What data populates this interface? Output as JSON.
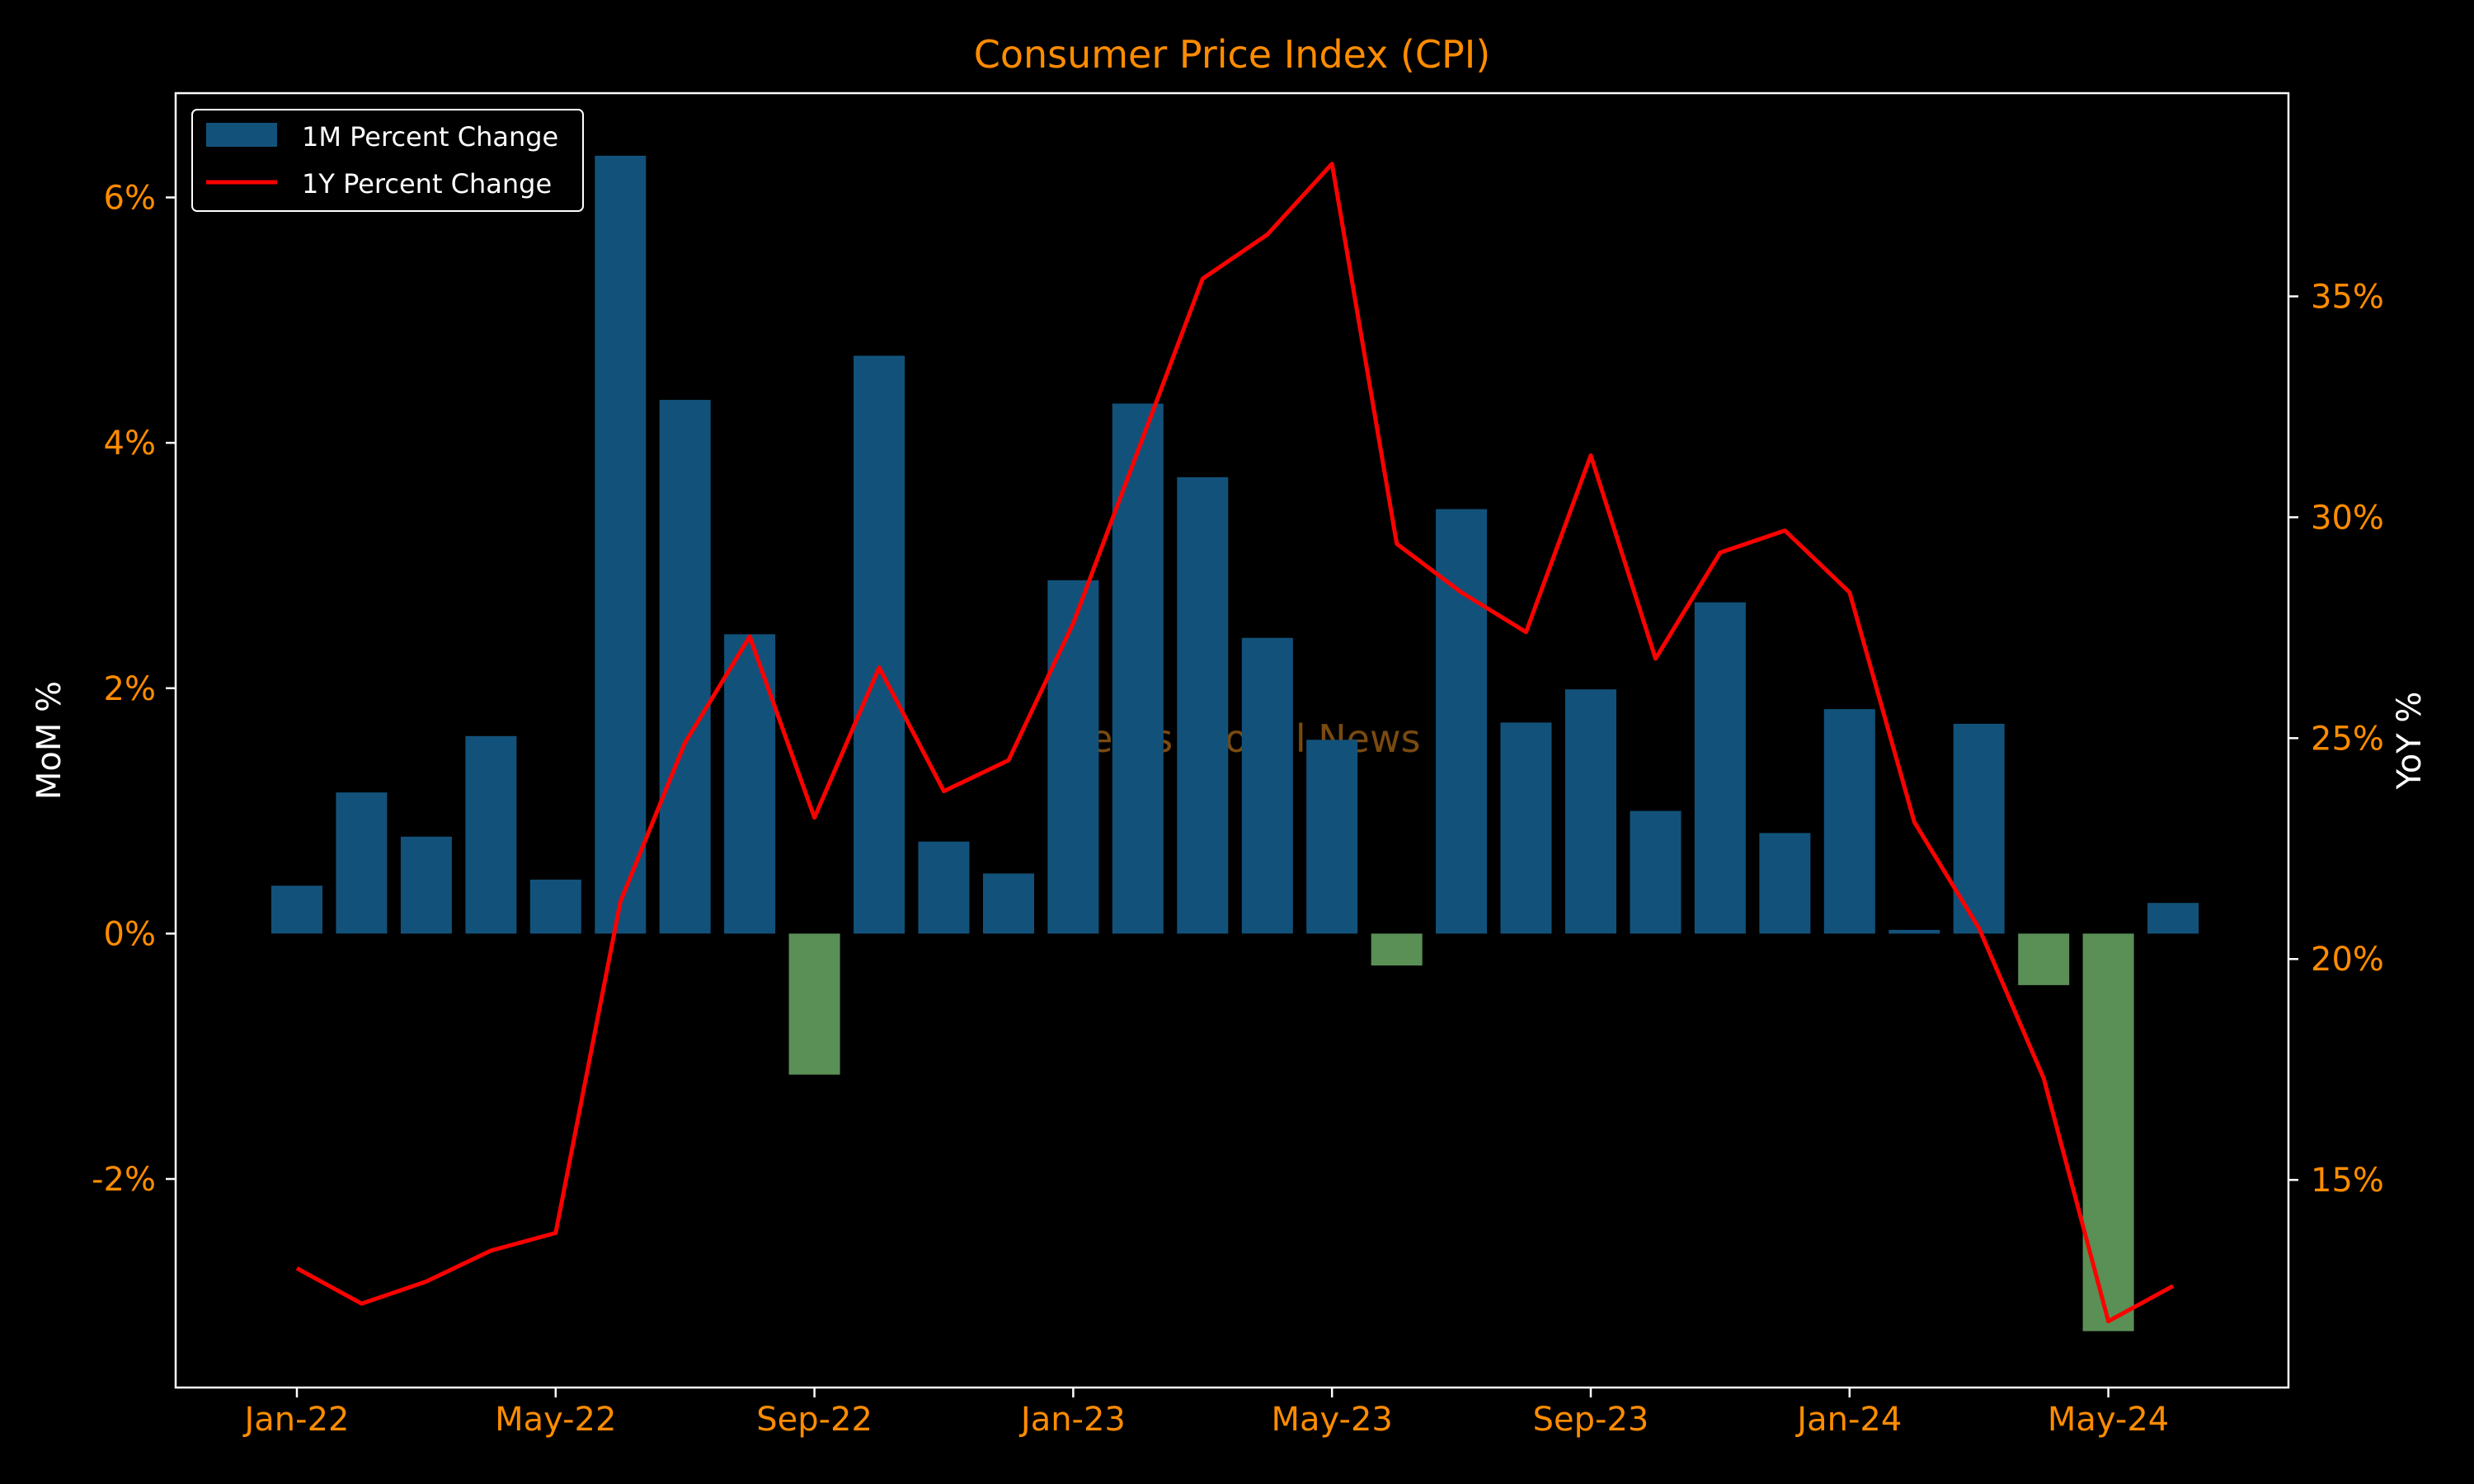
{
  "chart_data": {
    "type": "bar+line",
    "title": "Consumer Price Index (CPI)",
    "ylabel_left": "MoM %",
    "ylabel_right": "YoY %",
    "watermark": "Mettis Global News",
    "categories": [
      "Jan-22",
      "Feb-22",
      "Mar-22",
      "Apr-22",
      "May-22",
      "Jun-22",
      "Jul-22",
      "Aug-22",
      "Sep-22",
      "Oct-22",
      "Nov-22",
      "Dec-22",
      "Jan-23",
      "Feb-23",
      "Mar-23",
      "Apr-23",
      "May-23",
      "Jun-23",
      "Jul-23",
      "Aug-23",
      "Sep-23",
      "Oct-23",
      "Nov-23",
      "Dec-23",
      "Jan-24",
      "Feb-24",
      "Mar-24",
      "Apr-24",
      "May-24",
      "Jun-24"
    ],
    "x_tick_labels": [
      "Jan-22",
      "May-22",
      "Sep-22",
      "Jan-23",
      "May-23",
      "Sep-23",
      "Jan-24",
      "May-24"
    ],
    "x_tick_indices": [
      0,
      4,
      8,
      12,
      16,
      20,
      24,
      28
    ],
    "series": [
      {
        "name": "1M Percent Change",
        "type": "bar",
        "axis": "left",
        "values": [
          0.39,
          1.15,
          0.79,
          1.61,
          0.44,
          6.34,
          4.35,
          2.44,
          -1.15,
          4.71,
          0.75,
          0.49,
          2.88,
          4.32,
          3.72,
          2.41,
          1.58,
          -0.26,
          3.46,
          1.72,
          1.99,
          1.0,
          2.7,
          0.82,
          1.83,
          0.03,
          1.71,
          -0.42,
          -3.24,
          0.25
        ]
      },
      {
        "name": "1Y Percent Change",
        "type": "line",
        "axis": "right",
        "values": [
          13.0,
          12.2,
          12.7,
          13.4,
          13.8,
          21.3,
          24.9,
          27.3,
          23.2,
          26.6,
          23.8,
          24.5,
          27.6,
          31.5,
          35.4,
          36.4,
          38.0,
          29.4,
          28.3,
          27.4,
          31.4,
          26.8,
          29.2,
          29.7,
          28.3,
          23.1,
          20.7,
          17.3,
          11.8,
          12.6
        ]
      }
    ],
    "ylim_left": [
      -3.7,
      6.85
    ],
    "ylim_right": [
      10.3,
      39.6
    ],
    "yticks_left": [
      -2,
      0,
      2,
      4,
      6
    ],
    "yticks_left_labels": [
      "-2%",
      "0%",
      "2%",
      "4%",
      "6%"
    ],
    "yticks_right": [
      15,
      20,
      25,
      30,
      35
    ],
    "yticks_right_labels": [
      "15%",
      "20%",
      "25%",
      "30%",
      "35%"
    ],
    "legend_position": "top-left",
    "grid": false,
    "colors": {
      "background": "#000000",
      "title": "#ff8c00",
      "tick_labels": "#ff8c00",
      "axis_labels": "#ffffff",
      "frame": "#ffffff",
      "bar_positive": "#12527a",
      "bar_negative": "#5a8f56",
      "line": "#ff0000",
      "watermark": "#7a4a10",
      "legend_text": "#ffffff"
    }
  }
}
